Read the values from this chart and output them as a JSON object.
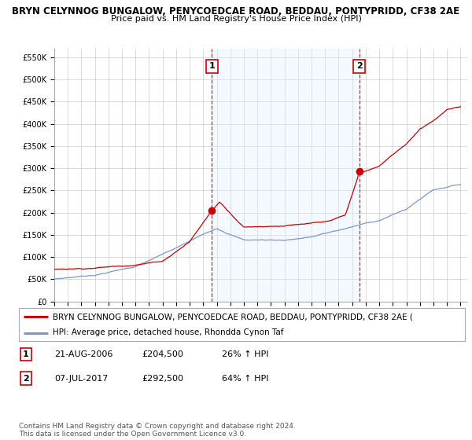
{
  "title": "BRYN CELYNNOG BUNGALOW, PENYCOEDCAE ROAD, BEDDAU, PONTYPRIDD, CF38 2AE",
  "subtitle": "Price paid vs. HM Land Registry's House Price Index (HPI)",
  "ylabel_ticks": [
    0,
    50000,
    100000,
    150000,
    200000,
    250000,
    300000,
    350000,
    400000,
    450000,
    500000,
    550000
  ],
  "ylabel_labels": [
    "£0",
    "£50K",
    "£100K",
    "£150K",
    "£200K",
    "£250K",
    "£300K",
    "£350K",
    "£400K",
    "£450K",
    "£500K",
    "£550K"
  ],
  "ylim": [
    0,
    570000
  ],
  "xlim_start": 1995.0,
  "xlim_end": 2025.5,
  "red_line_color": "#cc0000",
  "blue_line_color": "#7799cc",
  "shade_color": "#ddeeff",
  "marker_color": "#cc0000",
  "vline_color": "#cc0000",
  "transaction1_x": 2006.64,
  "transaction1_y": 204500,
  "transaction1_label": "1",
  "transaction2_x": 2017.52,
  "transaction2_y": 292500,
  "transaction2_label": "2",
  "legend_red_label": "BRYN CELYNNOG BUNGALOW, PENYCOEDCAE ROAD, BEDDAU, PONTYPRIDD, CF38 2AE (",
  "legend_blue_label": "HPI: Average price, detached house, Rhondda Cynon Taf",
  "table_rows": [
    [
      "1",
      "21-AUG-2006",
      "£204,500",
      "26% ↑ HPI"
    ],
    [
      "2",
      "07-JUL-2017",
      "£292,500",
      "64% ↑ HPI"
    ]
  ],
  "footnote": "Contains HM Land Registry data © Crown copyright and database right 2024.\nThis data is licensed under the Open Government Licence v3.0.",
  "background_color": "#ffffff",
  "grid_color": "#cccccc",
  "title_fontsize": 8.5,
  "subtitle_fontsize": 8,
  "tick_fontsize": 7,
  "legend_fontsize": 8
}
